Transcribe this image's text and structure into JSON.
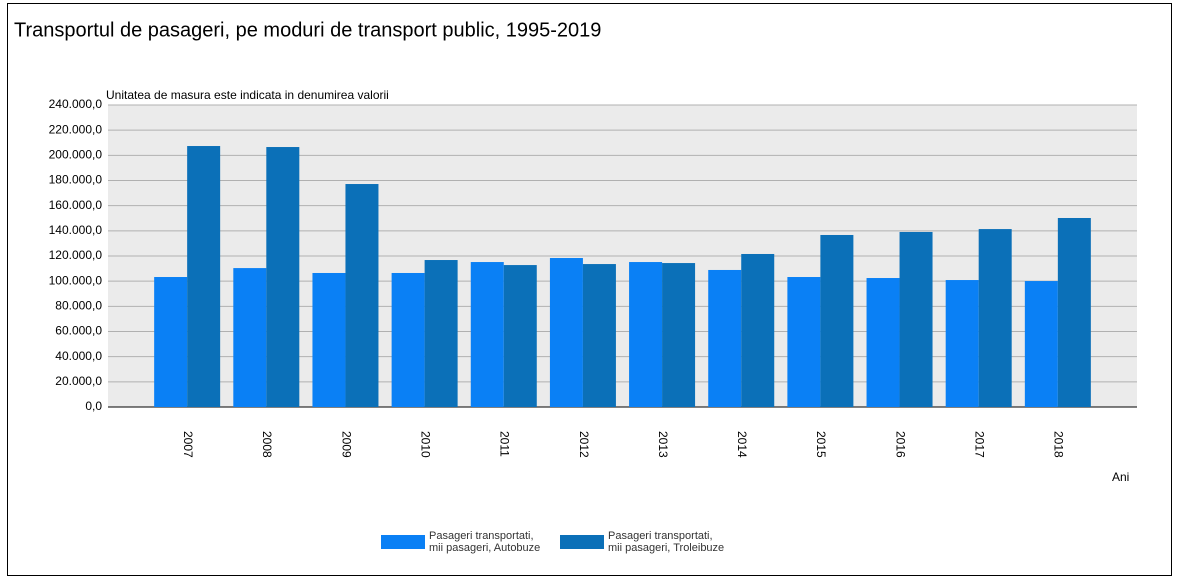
{
  "chart_data": {
    "type": "bar",
    "title": "Transportul de pasageri, pe moduri de transport public, 1995-2019",
    "ylabel": "Unitatea de masura este indicata in denumirea valorii",
    "xlabel": "Ani",
    "categories": [
      "2007",
      "2008",
      "2009",
      "2010",
      "2011",
      "2012",
      "2013",
      "2014",
      "2015",
      "2016",
      "2017",
      "2018"
    ],
    "series": [
      {
        "name": "Pasageri transportati, mii pasageri, Autobuze",
        "color": "#0a80f5",
        "values": [
          103300,
          110400,
          106500,
          106500,
          115200,
          118400,
          115200,
          108900,
          103300,
          102500,
          100900,
          100100
        ]
      },
      {
        "name": "Pasageri transportati, mii pasageri, Troleibuze",
        "color": "#0b70b8",
        "values": [
          207400,
          206600,
          177200,
          116800,
          112800,
          113600,
          114400,
          121600,
          136700,
          139100,
          141400,
          150200
        ]
      }
    ],
    "ylim": [
      0,
      240000
    ],
    "yticks": [
      {
        "value": 0,
        "label": "0,0"
      },
      {
        "value": 20000,
        "label": "20.000,0"
      },
      {
        "value": 40000,
        "label": "40.000,0"
      },
      {
        "value": 60000,
        "label": "60.000,0"
      },
      {
        "value": 80000,
        "label": "80.000,0"
      },
      {
        "value": 100000,
        "label": "100.000,0"
      },
      {
        "value": 120000,
        "label": "120.000,0"
      },
      {
        "value": 140000,
        "label": "140.000,0"
      },
      {
        "value": 160000,
        "label": "160.000,0"
      },
      {
        "value": 180000,
        "label": "180.000,0"
      },
      {
        "value": 200000,
        "label": "200.000,0"
      },
      {
        "value": 220000,
        "label": "220.000,0"
      },
      {
        "value": 240000,
        "label": "240.000,0"
      }
    ],
    "grid": true
  }
}
